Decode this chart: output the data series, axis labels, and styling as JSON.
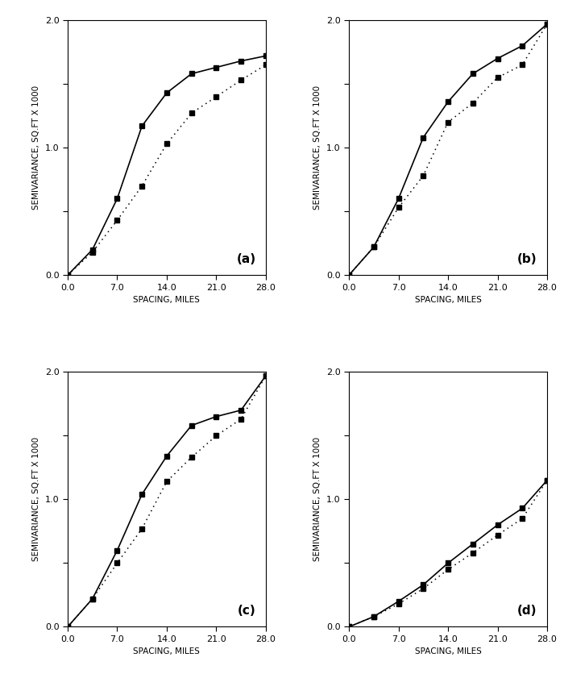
{
  "panels": [
    {
      "label": "(a)",
      "solid_x": [
        0.0,
        3.5,
        7.0,
        10.5,
        14.0,
        17.5,
        21.0,
        24.5,
        28.0
      ],
      "solid_y": [
        0.0,
        0.2,
        0.6,
        1.17,
        1.43,
        1.58,
        1.63,
        1.68,
        1.72
      ],
      "dotted_x": [
        0.0,
        3.5,
        7.0,
        10.5,
        14.0,
        17.5,
        21.0,
        24.5,
        28.0
      ],
      "dotted_y": [
        0.0,
        0.18,
        0.43,
        0.7,
        1.03,
        1.27,
        1.4,
        1.53,
        1.65
      ]
    },
    {
      "label": "(b)",
      "solid_x": [
        0.0,
        3.5,
        7.0,
        10.5,
        14.0,
        17.5,
        21.0,
        24.5,
        28.0
      ],
      "solid_y": [
        0.0,
        0.22,
        0.6,
        1.08,
        1.36,
        1.58,
        1.7,
        1.8,
        1.97
      ],
      "dotted_x": [
        0.0,
        3.5,
        7.0,
        10.5,
        14.0,
        17.5,
        21.0,
        24.5,
        28.0
      ],
      "dotted_y": [
        0.0,
        0.22,
        0.53,
        0.78,
        1.2,
        1.35,
        1.55,
        1.65,
        1.97
      ]
    },
    {
      "label": "(c)",
      "solid_x": [
        0.0,
        3.5,
        7.0,
        10.5,
        14.0,
        17.5,
        21.0,
        24.5,
        28.0
      ],
      "solid_y": [
        0.0,
        0.22,
        0.6,
        1.04,
        1.34,
        1.58,
        1.65,
        1.7,
        1.97
      ],
      "dotted_x": [
        0.0,
        3.5,
        7.0,
        10.5,
        14.0,
        17.5,
        21.0,
        24.5,
        28.0
      ],
      "dotted_y": [
        0.0,
        0.22,
        0.5,
        0.77,
        1.14,
        1.33,
        1.5,
        1.63,
        1.97
      ]
    },
    {
      "label": "(d)",
      "solid_x": [
        0.0,
        3.5,
        7.0,
        10.5,
        14.0,
        17.5,
        21.0,
        24.5,
        28.0
      ],
      "solid_y": [
        0.0,
        0.08,
        0.2,
        0.33,
        0.5,
        0.65,
        0.8,
        0.93,
        1.15
      ],
      "dotted_x": [
        0.0,
        3.5,
        7.0,
        10.5,
        14.0,
        17.5,
        21.0,
        24.5,
        28.0
      ],
      "dotted_y": [
        0.0,
        0.08,
        0.18,
        0.3,
        0.45,
        0.58,
        0.72,
        0.85,
        1.15
      ]
    }
  ],
  "xlabel": "SPACING, MILES",
  "ylabel": "SEMIVARIANCE, SQ.FT X 1000",
  "xlim": [
    0.0,
    28.0
  ],
  "ylim": [
    0.0,
    2.0
  ],
  "ylim_d": [
    0.0,
    2.0
  ],
  "xticks": [
    0.0,
    7.0,
    14.0,
    21.0,
    28.0
  ],
  "yticks": [
    0.0,
    0.5,
    1.0,
    1.5,
    2.0
  ],
  "yticklabels": [
    "0.0",
    "",
    "1.0",
    "",
    "2.0"
  ],
  "background_color": "#ffffff",
  "line_color": "#000000",
  "marker": "s",
  "markersize": 4,
  "linewidth_solid": 1.2,
  "linewidth_dotted": 1.1,
  "tick_fontsize": 8,
  "axis_label_fontsize": 7.5,
  "panel_label_fontsize": 11
}
